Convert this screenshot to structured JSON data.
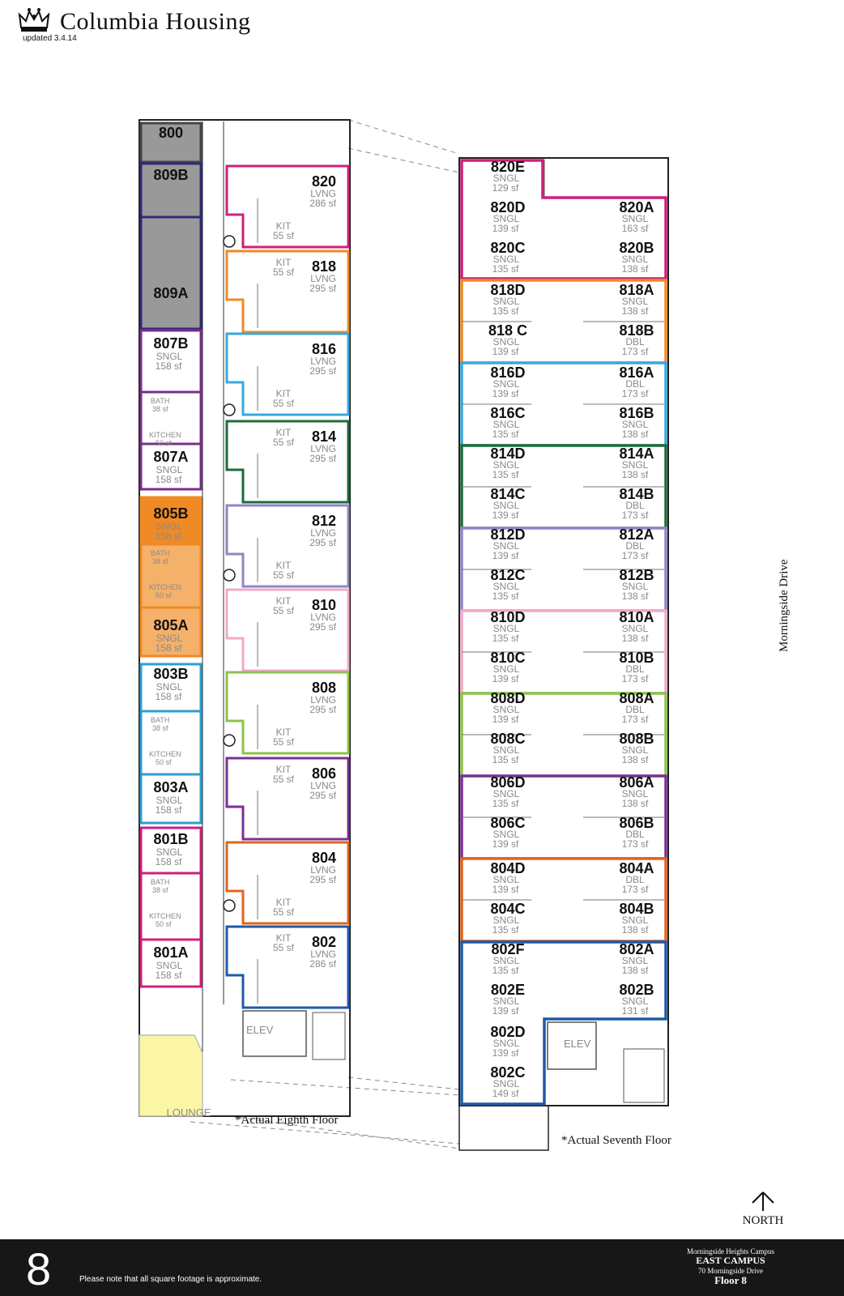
{
  "header": {
    "title": "Columbia Housing",
    "updated": "updated 3.4.14"
  },
  "colors": {
    "gray": "#999999",
    "navy": "#2e2a7a",
    "purple": "#7b2d8e",
    "orange_dark": "#f08a24",
    "orange_light": "#f5b06a",
    "blue": "#2c9fd0",
    "magenta": "#cf1f7c",
    "lounge": "#fbf6a6",
    "teal_blue": "#38a8dc",
    "dark_green": "#1d6b3b",
    "lavender": "#8e86c6",
    "pink": "#f2a8c8",
    "lime": "#8bc34a",
    "violet": "#7a2f96",
    "rust": "#e0641e",
    "royal_blue": "#1f5aa6"
  },
  "left_wing": {
    "label": "*Actual Eighth Floor",
    "left_column": [
      {
        "name": "800",
        "type": "",
        "size": ""
      },
      {
        "name": "809B",
        "type": "",
        "size": ""
      },
      {
        "name": "809A",
        "type": "",
        "size": ""
      },
      {
        "name": "807B",
        "type": "SNGL",
        "size": "158 sf"
      },
      {
        "name": "807A",
        "type": "SNGL",
        "size": "158 sf"
      },
      {
        "name": "805B",
        "type": "SNGL",
        "size": "158 sf"
      },
      {
        "name": "805A",
        "type": "SNGL",
        "size": "158 sf"
      },
      {
        "name": "803B",
        "type": "SNGL",
        "size": "158 sf"
      },
      {
        "name": "803A",
        "type": "SNGL",
        "size": "158 sf"
      },
      {
        "name": "801B",
        "type": "SNGL",
        "size": "158 sf"
      },
      {
        "name": "801A",
        "type": "SNGL",
        "size": "158 sf"
      }
    ],
    "baths": [
      {
        "bath": "BATH",
        "bath_size": "38 sf",
        "kitchen": "KITCHEN",
        "kitchen_size": "50 sf"
      },
      {
        "bath": "BATH",
        "bath_size": "38 sf",
        "kitchen": "KITCHEN",
        "kitchen_size": "50 sf"
      },
      {
        "bath": "BATH",
        "bath_size": "38 sf",
        "kitchen": "KITCHEN",
        "kitchen_size": "50 sf"
      },
      {
        "bath": "BATH",
        "bath_size": "38 sf",
        "kitchen": "KITCHEN",
        "kitchen_size": "50 sf"
      }
    ],
    "suites": [
      {
        "name": "820",
        "type": "LVNG",
        "size": "286 sf",
        "kit": "KIT",
        "kit_size": "55 sf"
      },
      {
        "name": "818",
        "type": "LVNG",
        "size": "295 sf",
        "kit": "KIT",
        "kit_size": "55 sf"
      },
      {
        "name": "816",
        "type": "LVNG",
        "size": "295 sf",
        "kit": "KIT",
        "kit_size": "55 sf"
      },
      {
        "name": "814",
        "type": "LVNG",
        "size": "295 sf",
        "kit": "KIT",
        "kit_size": "55 sf"
      },
      {
        "name": "812",
        "type": "LVNG",
        "size": "295 sf",
        "kit": "KIT",
        "kit_size": "55 sf"
      },
      {
        "name": "810",
        "type": "LVNG",
        "size": "295 sf",
        "kit": "KIT",
        "kit_size": "55 sf"
      },
      {
        "name": "808",
        "type": "LVNG",
        "size": "295 sf",
        "kit": "KIT",
        "kit_size": "55 sf"
      },
      {
        "name": "806",
        "type": "LVNG",
        "size": "295 sf",
        "kit": "KIT",
        "kit_size": "55 sf"
      },
      {
        "name": "804",
        "type": "LVNG",
        "size": "295 sf",
        "kit": "KIT",
        "kit_size": "55 sf"
      },
      {
        "name": "802",
        "type": "LVNG",
        "size": "286 sf",
        "kit": "KIT",
        "kit_size": "55 sf"
      }
    ],
    "elevator": "ELEV",
    "lounge": "LOUNGE"
  },
  "right_wing": {
    "label": "*Actual Seventh Floor",
    "elevator": "ELEV",
    "left_rooms": [
      {
        "name": "820E",
        "type": "SNGL",
        "size": "129 sf"
      },
      {
        "name": "820D",
        "type": "SNGL",
        "size": "139 sf"
      },
      {
        "name": "820C",
        "type": "SNGL",
        "size": "135 sf"
      },
      {
        "name": "818D",
        "type": "SNGL",
        "size": "135 sf"
      },
      {
        "name": "818 C",
        "type": "SNGL",
        "size": "139 sf"
      },
      {
        "name": "816D",
        "type": "SNGL",
        "size": "139 sf"
      },
      {
        "name": "816C",
        "type": "SNGL",
        "size": "135 sf"
      },
      {
        "name": "814D",
        "type": "SNGL",
        "size": "135 sf"
      },
      {
        "name": "814C",
        "type": "SNGL",
        "size": "139 sf"
      },
      {
        "name": "812D",
        "type": "SNGL",
        "size": "139 sf"
      },
      {
        "name": "812C",
        "type": "SNGL",
        "size": "135 sf"
      },
      {
        "name": "810D",
        "type": "SNGL",
        "size": "135 sf"
      },
      {
        "name": "810C",
        "type": "SNGL",
        "size": "139 sf"
      },
      {
        "name": "808D",
        "type": "SNGL",
        "size": "139 sf"
      },
      {
        "name": "808C",
        "type": "SNGL",
        "size": "135 sf"
      },
      {
        "name": "806D",
        "type": "SNGL",
        "size": "135 sf"
      },
      {
        "name": "806C",
        "type": "SNGL",
        "size": "139 sf"
      },
      {
        "name": "804D",
        "type": "SNGL",
        "size": "139 sf"
      },
      {
        "name": "804C",
        "type": "SNGL",
        "size": "135 sf"
      },
      {
        "name": "802F",
        "type": "SNGL",
        "size": "135 sf"
      },
      {
        "name": "802E",
        "type": "SNGL",
        "size": "139 sf"
      },
      {
        "name": "802D",
        "type": "SNGL",
        "size": "139 sf"
      },
      {
        "name": "802C",
        "type": "SNGL",
        "size": "149 sf"
      }
    ],
    "right_rooms": [
      {
        "name": "820A",
        "type": "SNGL",
        "size": "163 sf"
      },
      {
        "name": "820B",
        "type": "SNGL",
        "size": "138 sf"
      },
      {
        "name": "818A",
        "type": "SNGL",
        "size": "138 sf"
      },
      {
        "name": "818B",
        "type": "DBL",
        "size": "173 sf"
      },
      {
        "name": "816A",
        "type": "DBL",
        "size": "173 sf"
      },
      {
        "name": "816B",
        "type": "SNGL",
        "size": "138 sf"
      },
      {
        "name": "814A",
        "type": "SNGL",
        "size": "138 sf"
      },
      {
        "name": "814B",
        "type": "DBL",
        "size": "173 sf"
      },
      {
        "name": "812A",
        "type": "DBL",
        "size": "173 sf"
      },
      {
        "name": "812B",
        "type": "SNGL",
        "size": "138 sf"
      },
      {
        "name": "810A",
        "type": "SNGL",
        "size": "138 sf"
      },
      {
        "name": "810B",
        "type": "DBL",
        "size": "173 sf"
      },
      {
        "name": "808A",
        "type": "DBL",
        "size": "173 sf"
      },
      {
        "name": "808B",
        "type": "SNGL",
        "size": "138 sf"
      },
      {
        "name": "806A",
        "type": "SNGL",
        "size": "138 sf"
      },
      {
        "name": "806B",
        "type": "DBL",
        "size": "173 sf"
      },
      {
        "name": "804A",
        "type": "DBL",
        "size": "173 sf"
      },
      {
        "name": "804B",
        "type": "SNGL",
        "size": "138 sf"
      },
      {
        "name": "802A",
        "type": "SNGL",
        "size": "138 sf"
      },
      {
        "name": "802B",
        "type": "SNGL",
        "size": "131 sf"
      }
    ]
  },
  "street": "Morningside Drive",
  "north": "NORTH",
  "footer": {
    "floor_number": "8",
    "note": "Please note that all square footage is approximate.",
    "campus_line1": "Morningside Heights Campus",
    "campus_line2": "EAST CAMPUS",
    "campus_line3": "70 Morningside Drive",
    "campus_line4": "Floor 8"
  }
}
